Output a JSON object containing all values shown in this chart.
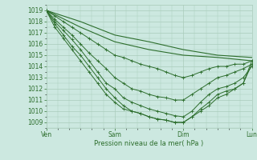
{
  "title": "",
  "xlabel": "Pression niveau de la mer( hPa )",
  "bg_color": "#cce8e0",
  "grid_color": "#aaccbb",
  "line_color": "#2d6e2d",
  "ylim": [
    1008.5,
    1019.5
  ],
  "yticks": [
    1009,
    1010,
    1011,
    1012,
    1013,
    1014,
    1015,
    1016,
    1017,
    1018,
    1019
  ],
  "xtick_labels": [
    "Ven",
    "Sam",
    "Dim",
    "Lun"
  ],
  "xtick_positions": [
    0,
    48,
    96,
    144
  ],
  "total_hours": 144,
  "series": [
    {
      "x": [
        0,
        24,
        48,
        72,
        96,
        120,
        144
      ],
      "y": [
        1019.0,
        1018.0,
        1016.8,
        1016.2,
        1015.5,
        1015.0,
        1014.8
      ],
      "marker": false
    },
    {
      "x": [
        0,
        24,
        48,
        72,
        96,
        120,
        144
      ],
      "y": [
        1019.0,
        1017.5,
        1016.2,
        1015.5,
        1015.0,
        1014.8,
        1014.5
      ],
      "marker": false
    },
    {
      "x": [
        0,
        6,
        12,
        18,
        24,
        30,
        36,
        42,
        48,
        54,
        60,
        66,
        72,
        78,
        84,
        90,
        96,
        102,
        108,
        114,
        120,
        126,
        132,
        138,
        144
      ],
      "y": [
        1019.0,
        1018.5,
        1018.0,
        1017.5,
        1017.0,
        1016.5,
        1016.0,
        1015.5,
        1015.0,
        1014.8,
        1014.5,
        1014.2,
        1014.0,
        1013.8,
        1013.5,
        1013.2,
        1013.0,
        1013.2,
        1013.5,
        1013.8,
        1014.0,
        1014.0,
        1014.2,
        1014.2,
        1014.5
      ],
      "marker": true
    },
    {
      "x": [
        0,
        6,
        12,
        18,
        24,
        30,
        36,
        42,
        48,
        54,
        60,
        66,
        72,
        78,
        84,
        90,
        96,
        102,
        108,
        114,
        120,
        126,
        132,
        138,
        144
      ],
      "y": [
        1019.0,
        1018.2,
        1017.5,
        1016.8,
        1016.0,
        1015.2,
        1014.5,
        1013.8,
        1013.0,
        1012.5,
        1012.0,
        1011.8,
        1011.5,
        1011.3,
        1011.2,
        1011.0,
        1011.0,
        1011.5,
        1012.0,
        1012.5,
        1013.0,
        1013.2,
        1013.5,
        1013.8,
        1014.2
      ],
      "marker": true
    },
    {
      "x": [
        0,
        6,
        12,
        18,
        24,
        30,
        36,
        42,
        48,
        54,
        60,
        66,
        72,
        78,
        84,
        90,
        96,
        102,
        108,
        114,
        120,
        126,
        132,
        138,
        144
      ],
      "y": [
        1019.0,
        1018.0,
        1017.2,
        1016.4,
        1015.5,
        1014.5,
        1013.5,
        1012.5,
        1012.0,
        1011.2,
        1010.8,
        1010.5,
        1010.2,
        1010.0,
        1009.8,
        1009.6,
        1009.5,
        1010.0,
        1010.8,
        1011.5,
        1012.0,
        1012.2,
        1012.5,
        1013.0,
        1014.0
      ],
      "marker": true
    },
    {
      "x": [
        0,
        6,
        12,
        18,
        24,
        30,
        36,
        42,
        48,
        54,
        60,
        66,
        72,
        78,
        84,
        90,
        96,
        102,
        108,
        114,
        120,
        126,
        132,
        138,
        144
      ],
      "y": [
        1019.0,
        1017.8,
        1016.8,
        1015.8,
        1015.0,
        1014.0,
        1013.0,
        1012.0,
        1011.2,
        1010.5,
        1010.0,
        1009.8,
        1009.5,
        1009.3,
        1009.2,
        1009.0,
        1009.0,
        1009.5,
        1010.2,
        1010.8,
        1011.5,
        1011.8,
        1012.0,
        1012.5,
        1014.2
      ],
      "marker": true
    },
    {
      "x": [
        0,
        6,
        12,
        18,
        24,
        30,
        36,
        42,
        48,
        54,
        60,
        66,
        72,
        78,
        84,
        90,
        96,
        102,
        108,
        114,
        120,
        126,
        132,
        138,
        144
      ],
      "y": [
        1019.0,
        1017.5,
        1016.5,
        1015.5,
        1014.5,
        1013.5,
        1012.5,
        1011.5,
        1010.8,
        1010.2,
        1010.0,
        1009.8,
        1009.5,
        1009.3,
        1009.2,
        1009.0,
        1009.0,
        1009.5,
        1010.0,
        1010.5,
        1011.2,
        1011.5,
        1012.0,
        1012.5,
        1014.5
      ],
      "marker": true
    }
  ]
}
